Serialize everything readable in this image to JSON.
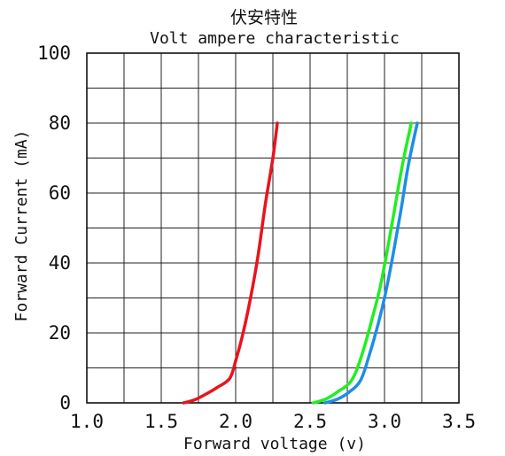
{
  "chart_data": {
    "type": "line",
    "title": "伏安特性",
    "subtitle": "Volt ampere characteristic",
    "xlabel": "Forward  voltage (v)",
    "ylabel": "Forward Current (mA)",
    "xlim": [
      1.0,
      3.5
    ],
    "ylim": [
      0,
      100
    ],
    "x_ticks": [
      1.0,
      1.5,
      2.0,
      2.5,
      3.0,
      3.5
    ],
    "x_tick_labels": [
      "1.0",
      "1.5",
      "2.0",
      "2.5",
      "3.0",
      "3.5"
    ],
    "y_ticks": [
      0,
      20,
      40,
      60,
      80,
      100
    ],
    "y_tick_labels": [
      "0",
      "20",
      "40",
      "60",
      "80",
      "100"
    ],
    "x_minor_step": 0.25,
    "y_minor_step": 10,
    "grid": true,
    "legend": "none",
    "series": [
      {
        "color": "#e8141c",
        "points": [
          [
            1.65,
            0
          ],
          [
            1.72,
            0.8
          ],
          [
            1.8,
            2.5
          ],
          [
            1.88,
            4.5
          ],
          [
            1.96,
            7
          ],
          [
            2.0,
            12
          ],
          [
            2.05,
            20
          ],
          [
            2.1,
            30
          ],
          [
            2.15,
            42
          ],
          [
            2.2,
            57
          ],
          [
            2.25,
            70
          ],
          [
            2.28,
            80
          ]
        ]
      },
      {
        "color": "#1e8de8",
        "points": [
          [
            2.6,
            0
          ],
          [
            2.68,
            1
          ],
          [
            2.76,
            3
          ],
          [
            2.84,
            6.5
          ],
          [
            2.9,
            14
          ],
          [
            2.96,
            23
          ],
          [
            3.01,
            32
          ],
          [
            3.06,
            43
          ],
          [
            3.11,
            55
          ],
          [
            3.16,
            68
          ],
          [
            3.22,
            80
          ]
        ]
      },
      {
        "color": "#22ee22",
        "points": [
          [
            2.52,
            0
          ],
          [
            2.6,
            1
          ],
          [
            2.68,
            3
          ],
          [
            2.78,
            6.5
          ],
          [
            2.85,
            14
          ],
          [
            2.91,
            23
          ],
          [
            2.97,
            33
          ],
          [
            3.02,
            44
          ],
          [
            3.07,
            56
          ],
          [
            3.12,
            68
          ],
          [
            3.18,
            80
          ]
        ]
      }
    ]
  }
}
